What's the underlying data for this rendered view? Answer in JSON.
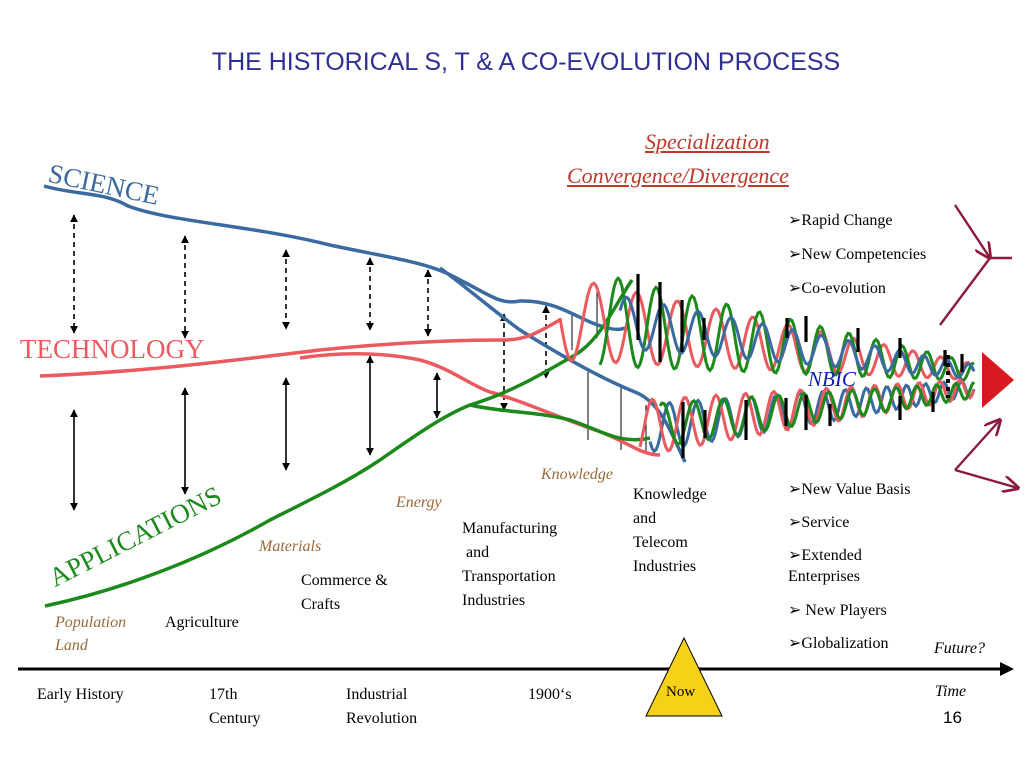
{
  "title": "THE HISTORICAL S, T & A CO-EVOLUTION PROCESS",
  "header_labels": {
    "specialization": "Specialization",
    "convergence": "Convergence/Divergence"
  },
  "streams": {
    "science": {
      "label": "SCIENCE",
      "color": "#3a6aa0"
    },
    "technology": {
      "label": "TECHNOLOGY",
      "color": "#ea5a5f"
    },
    "applications": {
      "label": "APPLICATIONS",
      "color": "#1b8a1b"
    }
  },
  "eras": [
    {
      "label": "Population",
      "sub": "Land",
      "industry": "Agriculture"
    },
    {
      "label": "Materials",
      "industry_lines": [
        "Commerce &",
        "Crafts"
      ]
    },
    {
      "label": "Energy",
      "industry_lines": [
        "Manufacturing",
        " and",
        "Transportation",
        "Industries"
      ]
    },
    {
      "label": "Knowledge",
      "industry_lines": [
        "Knowledge",
        "and",
        "Telecom",
        "Industries"
      ]
    }
  ],
  "upper_bullets": [
    "Rapid Change",
    "New Competencies",
    "Co-evolution"
  ],
  "lower_bullets": [
    "New Value Basis",
    "Service",
    "Extended",
    "Enterprises",
    " New Players",
    "Globalization"
  ],
  "nbic": "NBIC",
  "timeline": {
    "labels": [
      "Early History",
      "17th",
      "Century",
      "Industrial",
      "Revolution",
      "1900‘s"
    ],
    "now": "Now",
    "future": "Future?",
    "time": "Time"
  },
  "slide_number": "16",
  "colors": {
    "title": "#2e3192",
    "era_label": "#9a6a3a",
    "nbic": "#0b1db4",
    "arrow_red": "#d71920",
    "branch": "#8b1a3c",
    "now_fill": "#f7d117"
  }
}
